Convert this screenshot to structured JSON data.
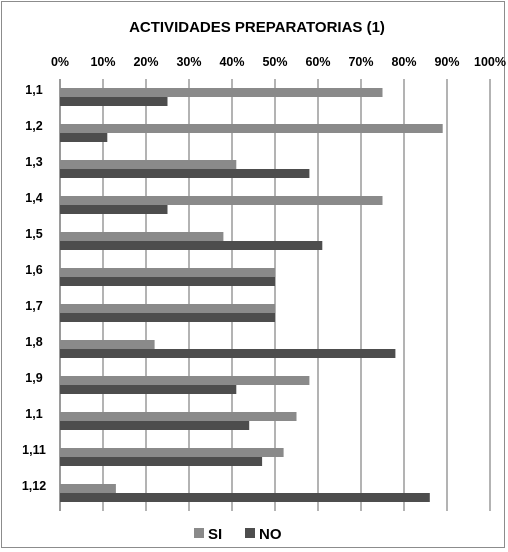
{
  "chart_data": {
    "type": "bar",
    "orientation": "horizontal",
    "title": "ACTIVIDADES PREPARATORIAS (1)",
    "categories": [
      "1,1",
      "1,2",
      "1,3",
      "1,4",
      "1,5",
      "1,6",
      "1,7",
      "1,8",
      "1,9",
      "1,1",
      "1,11",
      "1,12"
    ],
    "series": [
      {
        "name": "SI",
        "color": "#8a8a8a",
        "values": [
          75,
          89,
          41,
          75,
          38,
          50,
          50,
          22,
          58,
          55,
          52,
          13
        ]
      },
      {
        "name": "NO",
        "color": "#4d4d4d",
        "values": [
          25,
          11,
          58,
          25,
          61,
          50,
          50,
          78,
          41,
          44,
          47,
          86
        ]
      }
    ],
    "x_ticks": [
      "0%",
      "10%",
      "20%",
      "30%",
      "40%",
      "50%",
      "60%",
      "70%",
      "80%",
      "90%",
      "100%"
    ],
    "xlim": [
      0,
      100
    ],
    "x_axis_position": "top",
    "grid": true,
    "legend_position": "bottom"
  }
}
